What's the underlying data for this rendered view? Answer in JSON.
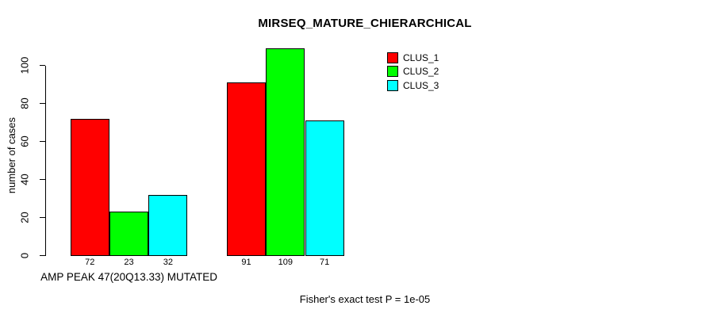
{
  "chart_data": {
    "type": "bar",
    "title": "MIRSEQ_MATURE_CHIERARCHICAL",
    "ylabel": "number of cases",
    "xlabel": "",
    "ylim": [
      0,
      110
    ],
    "yticks": [
      0,
      20,
      40,
      60,
      80,
      100
    ],
    "grid": false,
    "legend_position": "top-right",
    "categories": [
      "AMP PEAK 47(20Q13.33) MUTATED",
      ""
    ],
    "series": [
      {
        "name": "CLUS_1",
        "color": "#ff0000",
        "values": [
          72,
          91
        ]
      },
      {
        "name": "CLUS_2",
        "color": "#00ff00",
        "values": [
          23,
          109
        ]
      },
      {
        "name": "CLUS_3",
        "color": "#00ffff",
        "values": [
          32,
          71
        ]
      }
    ],
    "bar_value_labels": [
      [
        72,
        23,
        32
      ],
      [
        91,
        109,
        71
      ]
    ],
    "annotation": "Fisher's exact test P = 1e-05"
  },
  "colors": {
    "background": "#ffffff",
    "axis": "#000000",
    "text": "#000000"
  }
}
